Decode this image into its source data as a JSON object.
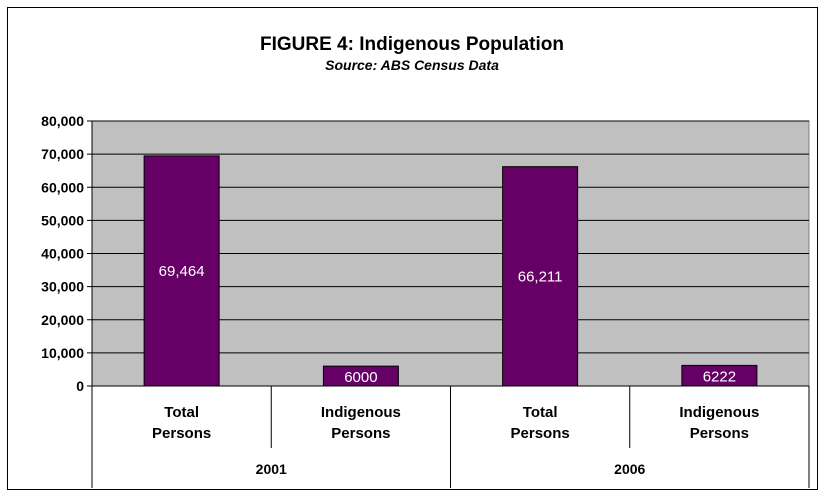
{
  "chart_data": {
    "type": "bar",
    "title": "FIGURE 4: Indigenous Population",
    "subtitle": "Source: ABS Census Data",
    "categories": [
      {
        "label_lines": [
          "Total",
          "Persons"
        ],
        "group": "2001",
        "value": 69464,
        "value_label": "69,464"
      },
      {
        "label_lines": [
          "Indigenous",
          "Persons"
        ],
        "group": "2001",
        "value": 6000,
        "value_label": "6000"
      },
      {
        "label_lines": [
          "Total",
          "Persons"
        ],
        "group": "2006",
        "value": 66211,
        "value_label": "66,211"
      },
      {
        "label_lines": [
          "Indigenous",
          "Persons"
        ],
        "group": "2006",
        "value": 6222,
        "value_label": "6222"
      }
    ],
    "groups": [
      "2001",
      "2006"
    ],
    "ylim": [
      0,
      80000
    ],
    "yticks": [
      0,
      10000,
      20000,
      30000,
      40000,
      50000,
      60000,
      70000,
      80000
    ],
    "ytick_labels": [
      "0",
      "10,000",
      "20,000",
      "30,000",
      "40,000",
      "50,000",
      "60,000",
      "70,000",
      "80,000"
    ],
    "grid": true,
    "legend": "none",
    "colors": {
      "bar": "#660066",
      "plot_background": "#c0c0c0",
      "gridline": "#000000",
      "data_label": "#ffffff"
    }
  }
}
